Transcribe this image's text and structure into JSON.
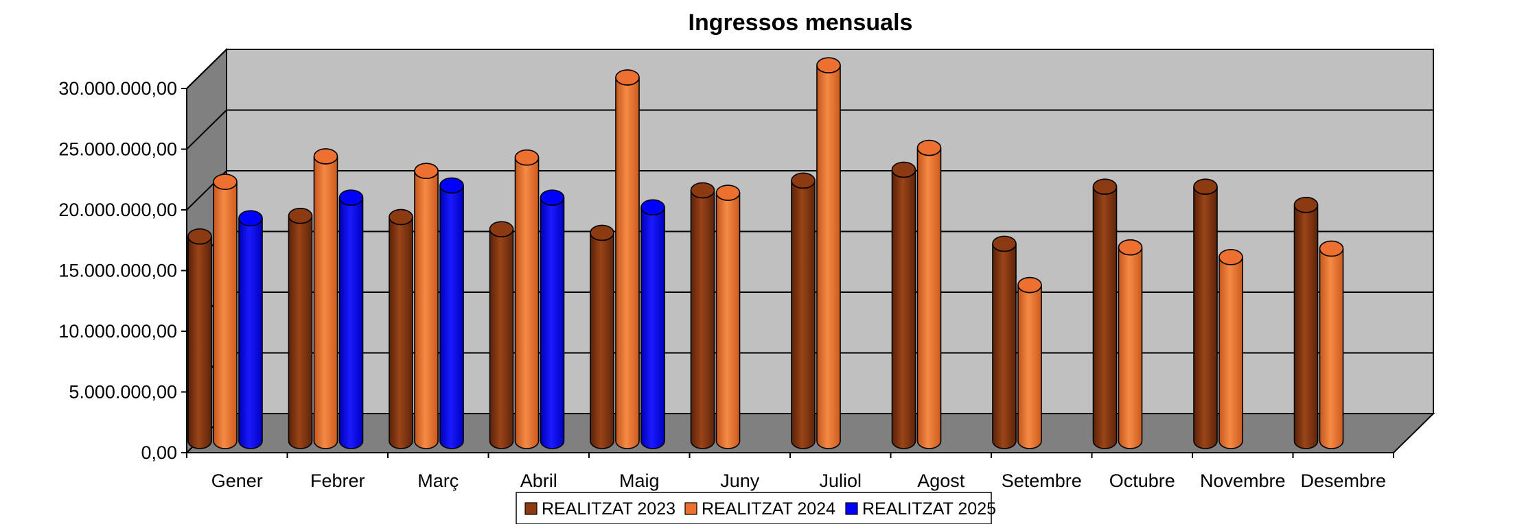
{
  "chart_data": {
    "type": "bar",
    "title": "Ingressos mensuals",
    "xlabel": "",
    "ylabel": "",
    "categories": [
      "Gener",
      "Febrer",
      "Març",
      "Abril",
      "Maig",
      "Juny",
      "Juliol",
      "Agost",
      "Setembre",
      "Octubre",
      "Novembre",
      "Desembre"
    ],
    "y_ticks": [
      "0,00",
      "5.000.000,00",
      "10.000.000,00",
      "15.000.000,00",
      "20.000.000,00",
      "25.000.000,00",
      "30.000.000,00"
    ],
    "ylim": [
      0,
      30000000
    ],
    "grid": true,
    "legend_position": "bottom",
    "series": [
      {
        "name": "REALITZAT 2023",
        "color": "#8B3A12",
        "values": [
          16200000,
          17900000,
          17800000,
          16800000,
          16500000,
          20000000,
          20800000,
          21700000,
          15600000,
          20300000,
          20300000,
          18800000
        ]
      },
      {
        "name": "REALITZAT 2024",
        "color": "#ED7030",
        "values": [
          20700000,
          22800000,
          21600000,
          22700000,
          29300000,
          19800000,
          30300000,
          23500000,
          12200000,
          15300000,
          14500000,
          15200000
        ]
      },
      {
        "name": "REALITZAT 2025",
        "color": "#0000FF",
        "values": [
          17700000,
          19400000,
          20400000,
          19400000,
          18600000,
          null,
          null,
          null,
          null,
          null,
          null,
          null
        ]
      }
    ]
  }
}
